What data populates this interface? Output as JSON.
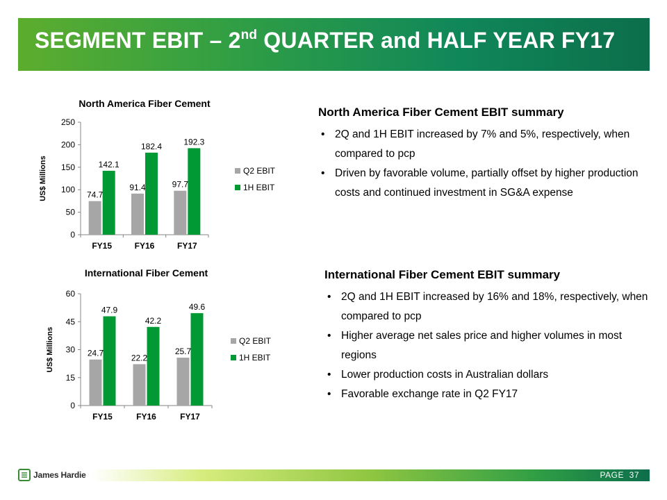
{
  "header": {
    "title_part1": "SEGMENT EBIT – 2",
    "title_sup": "nd",
    "title_part2": " QUARTER and HALF YEAR FY17"
  },
  "chart_data": [
    {
      "type": "bar",
      "title": "North America Fiber Cement",
      "xlabel": "",
      "ylabel": "US$ Millions",
      "categories": [
        "FY15",
        "FY16",
        "FY17"
      ],
      "series": [
        {
          "name": "Q2 EBIT",
          "values": [
            74.7,
            91.4,
            97.7
          ],
          "color": "#a6a6a6",
          "labels": [
            "74.7",
            "91.4",
            "97.7"
          ]
        },
        {
          "name": "1H EBIT",
          "values": [
            142.1,
            182.4,
            192.3
          ],
          "color": "#009933",
          "labels": [
            "142.1",
            "182.4",
            "192.3"
          ]
        }
      ],
      "ylim": [
        0,
        250
      ],
      "yticks": [
        0,
        50,
        100,
        150,
        200,
        250
      ],
      "grid": false,
      "legend": "right"
    },
    {
      "type": "bar",
      "title": "International Fiber Cement",
      "xlabel": "",
      "ylabel": "US$ Millions",
      "categories": [
        "FY15",
        "FY16",
        "FY17"
      ],
      "series": [
        {
          "name": "Q2 EBIT",
          "values": [
            24.7,
            22.2,
            25.7
          ],
          "color": "#a6a6a6",
          "labels": [
            "24.7",
            "22.2",
            "25.7"
          ]
        },
        {
          "name": "1H EBIT",
          "values": [
            47.9,
            42.2,
            49.6
          ],
          "color": "#009933",
          "labels": [
            "47.9",
            "42.2",
            "49.6"
          ]
        }
      ],
      "ylim": [
        0,
        60
      ],
      "yticks": [
        0,
        15,
        30,
        45,
        60
      ],
      "grid": false,
      "legend": "right"
    }
  ],
  "summaries": {
    "na": {
      "heading": "North America Fiber Cement EBIT summary",
      "bullets": [
        "2Q and 1H EBIT increased by 7% and 5%, respectively, when compared to pcp",
        "Driven by favorable volume, partially offset by higher production costs and continued investment in SG&A expense"
      ]
    },
    "intl": {
      "heading": "International Fiber Cement EBIT summary",
      "bullets": [
        "2Q and 1H EBIT increased by 16% and 18%, respectively, when compared to pcp",
        "Higher average net sales price and higher volumes in most regions",
        "Lower production costs in Australian dollars",
        "Favorable exchange rate in Q2 FY17"
      ]
    },
    "bullet_glyph": "•"
  },
  "footer": {
    "logo_text": "James Hardie",
    "page_label": "PAGE",
    "page_number": "37"
  }
}
